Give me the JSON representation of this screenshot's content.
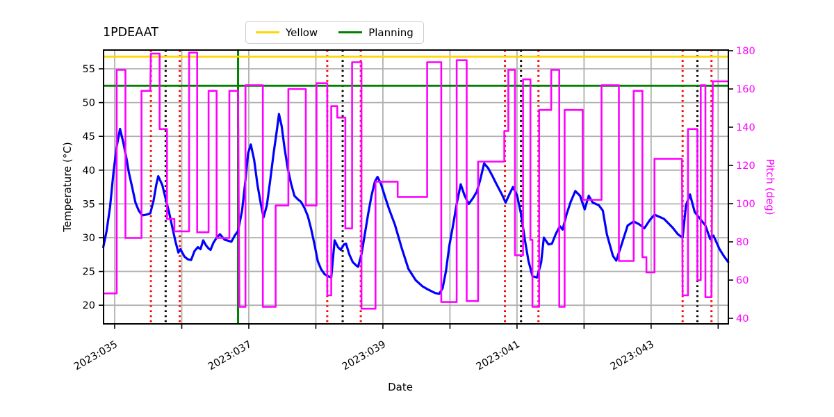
{
  "title": "1PDEAAT",
  "legend": {
    "items": [
      {
        "label": "Yellow",
        "color": "#ffd700"
      },
      {
        "label": "Planning",
        "color": "#008000"
      }
    ]
  },
  "axes": {
    "x": {
      "label": "Date",
      "range_days": [
        34.834,
        44.152
      ],
      "tick_days": [
        35,
        36,
        37,
        38,
        39,
        40,
        41,
        42,
        43,
        44
      ],
      "tick_labels": [
        "2023:035",
        "",
        "2023:037",
        "",
        "2023:039",
        "",
        "2023:041",
        "",
        "2023:043",
        ""
      ]
    },
    "y_left": {
      "label": "Temperature (°C)",
      "color": "#000000",
      "ticks": [
        20,
        25,
        30,
        35,
        40,
        45,
        50,
        55
      ],
      "range": [
        17.24,
        57.78
      ]
    },
    "y_right": {
      "label": "Pitch (deg)",
      "color": "#ff00ff",
      "ticks": [
        40,
        60,
        80,
        100,
        120,
        140,
        160,
        180
      ],
      "range": [
        37.09,
        180.36
      ]
    }
  },
  "chart_data": {
    "type": "line",
    "title": "1PDEAAT",
    "xlabel": "Date",
    "x_unit": "2023 day-of-year",
    "grid": true,
    "grid_color": "#b0b0b0",
    "legend_position": "top-center",
    "series": [
      {
        "name": "temperature",
        "axis": "left",
        "color": "#0000ff",
        "style": "solid",
        "points": [
          [
            34.83,
            28.6
          ],
          [
            34.88,
            31.0
          ],
          [
            34.93,
            34.5
          ],
          [
            34.98,
            39.5
          ],
          [
            35.03,
            43.5
          ],
          [
            35.08,
            46.1
          ],
          [
            35.13,
            44.0
          ],
          [
            35.18,
            41.5
          ],
          [
            35.21,
            39.7
          ],
          [
            35.26,
            37.5
          ],
          [
            35.31,
            35.2
          ],
          [
            35.36,
            34.0
          ],
          [
            35.41,
            33.3
          ],
          [
            35.47,
            33.4
          ],
          [
            35.53,
            33.6
          ],
          [
            35.58,
            35.5
          ],
          [
            35.62,
            37.8
          ],
          [
            35.65,
            39.1
          ],
          [
            35.71,
            37.8
          ],
          [
            35.76,
            35.8
          ],
          [
            35.81,
            33.8
          ],
          [
            35.86,
            31.5
          ],
          [
            35.91,
            29.3
          ],
          [
            35.95,
            27.8
          ],
          [
            35.98,
            28.3
          ],
          [
            36.04,
            27.2
          ],
          [
            36.09,
            26.8
          ],
          [
            36.14,
            26.7
          ],
          [
            36.19,
            28.0
          ],
          [
            36.24,
            28.6
          ],
          [
            36.28,
            28.3
          ],
          [
            36.32,
            29.6
          ],
          [
            36.36,
            28.9
          ],
          [
            36.4,
            28.4
          ],
          [
            36.43,
            28.2
          ],
          [
            36.47,
            29.2
          ],
          [
            36.52,
            30.0
          ],
          [
            36.57,
            30.5
          ],
          [
            36.64,
            29.7
          ],
          [
            36.71,
            29.5
          ],
          [
            36.74,
            29.4
          ],
          [
            36.79,
            30.3
          ],
          [
            36.84,
            31.0
          ],
          [
            36.9,
            34.0
          ],
          [
            36.95,
            38.5
          ],
          [
            36.99,
            42.5
          ],
          [
            37.03,
            43.8
          ],
          [
            37.08,
            41.5
          ],
          [
            37.13,
            37.8
          ],
          [
            37.18,
            35.0
          ],
          [
            37.22,
            33.0
          ],
          [
            37.27,
            34.8
          ],
          [
            37.32,
            38.5
          ],
          [
            37.37,
            42.5
          ],
          [
            37.42,
            46.0
          ],
          [
            37.45,
            48.3
          ],
          [
            37.49,
            46.5
          ],
          [
            37.53,
            43.5
          ],
          [
            37.58,
            40.3
          ],
          [
            37.63,
            38.0
          ],
          [
            37.68,
            36.2
          ],
          [
            37.73,
            35.7
          ],
          [
            37.78,
            35.3
          ],
          [
            37.83,
            34.4
          ],
          [
            37.88,
            33.2
          ],
          [
            37.93,
            31.3
          ],
          [
            37.98,
            29.0
          ],
          [
            38.03,
            26.5
          ],
          [
            38.08,
            25.3
          ],
          [
            38.13,
            24.6
          ],
          [
            38.18,
            24.3
          ],
          [
            38.23,
            24.1
          ],
          [
            38.28,
            29.6
          ],
          [
            38.33,
            28.6
          ],
          [
            38.37,
            28.2
          ],
          [
            38.42,
            29.0
          ],
          [
            38.45,
            29.1
          ],
          [
            38.5,
            27.5
          ],
          [
            38.55,
            26.4
          ],
          [
            38.6,
            25.9
          ],
          [
            38.63,
            25.7
          ],
          [
            38.68,
            27.5
          ],
          [
            38.73,
            30.5
          ],
          [
            38.78,
            33.5
          ],
          [
            38.83,
            36.2
          ],
          [
            38.88,
            38.3
          ],
          [
            38.92,
            39.0
          ],
          [
            38.97,
            38.0
          ],
          [
            39.04,
            35.8
          ],
          [
            39.09,
            34.3
          ],
          [
            39.18,
            31.9
          ],
          [
            39.28,
            28.5
          ],
          [
            39.38,
            25.4
          ],
          [
            39.49,
            23.7
          ],
          [
            39.59,
            22.8
          ],
          [
            39.66,
            22.4
          ],
          [
            39.72,
            22.1
          ],
          [
            39.78,
            21.8
          ],
          [
            39.84,
            21.7
          ],
          [
            39.89,
            22.5
          ],
          [
            39.94,
            25.0
          ],
          [
            39.99,
            28.8
          ],
          [
            40.04,
            31.5
          ],
          [
            40.1,
            35.0
          ],
          [
            40.16,
            37.9
          ],
          [
            40.22,
            36.2
          ],
          [
            40.28,
            35.0
          ],
          [
            40.34,
            35.8
          ],
          [
            40.4,
            36.8
          ],
          [
            40.45,
            38.5
          ],
          [
            40.51,
            41.0
          ],
          [
            40.57,
            40.3
          ],
          [
            40.63,
            39.2
          ],
          [
            40.7,
            37.8
          ],
          [
            40.78,
            36.3
          ],
          [
            40.83,
            35.2
          ],
          [
            40.89,
            36.5
          ],
          [
            40.94,
            37.5
          ],
          [
            41.0,
            36.3
          ],
          [
            41.06,
            33.5
          ],
          [
            41.12,
            29.5
          ],
          [
            41.17,
            26.6
          ],
          [
            41.23,
            24.3
          ],
          [
            41.3,
            24.1
          ],
          [
            41.36,
            26.3
          ],
          [
            41.4,
            30.0
          ],
          [
            41.47,
            29.0
          ],
          [
            41.52,
            29.1
          ],
          [
            41.58,
            30.6
          ],
          [
            41.64,
            31.7
          ],
          [
            41.68,
            31.2
          ],
          [
            41.74,
            33.5
          ],
          [
            41.8,
            35.3
          ],
          [
            41.87,
            36.9
          ],
          [
            41.94,
            36.2
          ],
          [
            42.01,
            34.2
          ],
          [
            42.07,
            36.2
          ],
          [
            42.13,
            35.2
          ],
          [
            42.22,
            34.8
          ],
          [
            42.28,
            34.0
          ],
          [
            42.34,
            30.5
          ],
          [
            42.43,
            27.3
          ],
          [
            42.48,
            26.6
          ],
          [
            42.56,
            29.0
          ],
          [
            42.65,
            31.8
          ],
          [
            42.74,
            32.4
          ],
          [
            42.82,
            32.0
          ],
          [
            42.9,
            31.4
          ],
          [
            42.98,
            32.6
          ],
          [
            43.05,
            33.4
          ],
          [
            43.19,
            32.8
          ],
          [
            43.32,
            31.5
          ],
          [
            43.4,
            30.5
          ],
          [
            43.47,
            30.0
          ],
          [
            43.52,
            34.8
          ],
          [
            43.58,
            36.4
          ],
          [
            43.65,
            33.8
          ],
          [
            43.73,
            32.8
          ],
          [
            43.81,
            31.8
          ],
          [
            43.88,
            29.8
          ],
          [
            43.93,
            30.3
          ],
          [
            44.02,
            28.3
          ],
          [
            44.09,
            27.2
          ],
          [
            44.15,
            26.4
          ]
        ]
      },
      {
        "name": "pitch",
        "axis": "right",
        "color": "#ff00ff",
        "style": "step",
        "segments": [
          [
            34.83,
            35.03,
            53
          ],
          [
            35.03,
            35.16,
            170
          ],
          [
            35.16,
            35.4,
            82
          ],
          [
            35.4,
            35.53,
            159
          ],
          [
            35.54,
            35.67,
            178.5
          ],
          [
            35.67,
            35.78,
            139
          ],
          [
            35.78,
            35.89,
            92
          ],
          [
            35.89,
            36.11,
            85.5
          ],
          [
            36.11,
            36.23,
            179
          ],
          [
            36.23,
            36.4,
            85
          ],
          [
            36.4,
            36.52,
            159
          ],
          [
            36.52,
            36.71,
            82
          ],
          [
            36.71,
            36.84,
            159
          ],
          [
            36.86,
            36.95,
            46
          ],
          [
            36.95,
            37.21,
            162
          ],
          [
            37.21,
            37.4,
            46
          ],
          [
            37.4,
            37.59,
            99
          ],
          [
            37.59,
            37.85,
            160
          ],
          [
            37.85,
            38.01,
            99
          ],
          [
            38.01,
            38.17,
            163
          ],
          [
            38.17,
            38.23,
            52
          ],
          [
            38.23,
            38.32,
            151
          ],
          [
            38.32,
            38.44,
            145
          ],
          [
            38.44,
            38.54,
            87
          ],
          [
            38.54,
            38.68,
            174
          ],
          [
            38.68,
            38.89,
            45
          ],
          [
            38.89,
            39.22,
            111.5
          ],
          [
            39.22,
            39.66,
            103.5
          ],
          [
            39.66,
            39.87,
            174
          ],
          [
            39.87,
            40.1,
            48.5
          ],
          [
            40.1,
            40.25,
            175
          ],
          [
            40.25,
            40.42,
            49
          ],
          [
            40.42,
            40.81,
            122
          ],
          [
            40.81,
            40.87,
            138
          ],
          [
            40.87,
            40.97,
            170
          ],
          [
            40.97,
            41.09,
            73
          ],
          [
            41.09,
            41.2,
            165
          ],
          [
            41.2,
            41.23,
            81
          ],
          [
            41.23,
            41.33,
            46
          ],
          [
            41.33,
            41.51,
            149
          ],
          [
            41.51,
            41.63,
            170
          ],
          [
            41.63,
            41.71,
            46
          ],
          [
            41.71,
            41.98,
            149
          ],
          [
            41.98,
            42.26,
            102
          ],
          [
            42.26,
            42.52,
            162
          ],
          [
            42.52,
            42.74,
            70
          ],
          [
            42.74,
            42.87,
            159
          ],
          [
            42.87,
            42.93,
            72
          ],
          [
            42.93,
            43.05,
            64
          ],
          [
            43.05,
            43.46,
            123.5
          ],
          [
            43.47,
            43.55,
            52
          ],
          [
            43.55,
            43.69,
            139
          ],
          [
            43.69,
            43.74,
            60
          ],
          [
            43.74,
            43.81,
            162
          ],
          [
            43.81,
            43.9,
            51
          ],
          [
            43.92,
            44.15,
            164
          ]
        ]
      }
    ],
    "limit_lines": [
      {
        "name": "Yellow",
        "axis": "left",
        "value": 56.8,
        "color": "#ffd700",
        "style": "solid"
      },
      {
        "name": "Planning",
        "axis": "left",
        "value": 52.5,
        "color": "#008000",
        "style": "solid"
      }
    ],
    "vertical_lines": [
      {
        "day": 35.54,
        "color": "#ff0000",
        "style": "dotted"
      },
      {
        "day": 35.97,
        "color": "#ff0000",
        "style": "dotted"
      },
      {
        "day": 38.17,
        "color": "#ff0000",
        "style": "dotted"
      },
      {
        "day": 38.67,
        "color": "#ff0000",
        "style": "dotted"
      },
      {
        "day": 40.82,
        "color": "#ff0000",
        "style": "dotted"
      },
      {
        "day": 41.32,
        "color": "#ff0000",
        "style": "dotted"
      },
      {
        "day": 43.47,
        "color": "#ff0000",
        "style": "dotted"
      },
      {
        "day": 43.9,
        "color": "#ff0000",
        "style": "dotted"
      },
      {
        "day": 35.76,
        "color": "#000000",
        "style": "dotted"
      },
      {
        "day": 38.4,
        "color": "#000000",
        "style": "dotted"
      },
      {
        "day": 41.06,
        "color": "#000000",
        "style": "dotted"
      },
      {
        "day": 43.69,
        "color": "#000000",
        "style": "dotted"
      },
      {
        "day": 36.84,
        "color": "#008000",
        "style": "solid"
      }
    ]
  }
}
